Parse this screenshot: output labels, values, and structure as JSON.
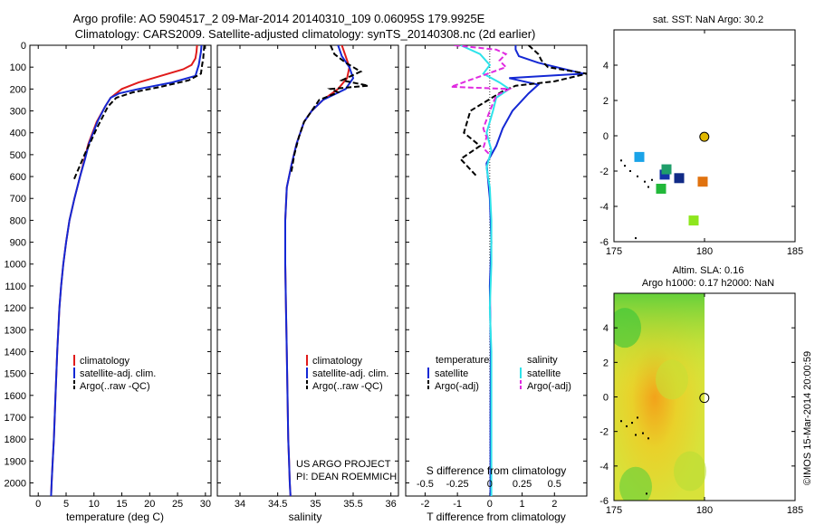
{
  "header": {
    "title_line1": "Argo profile: AO 5904517_2 09-Mar-2014 20140310_109 0.06095S 179.9925E",
    "title_line2": "Climatology: CARS2009. Satellite-adjusted climatology: synTS_20140308.nc (2d earlier)"
  },
  "colors": {
    "climatology": "#e01b1b",
    "satellite": "#1428d4",
    "argo": "#000000",
    "salinity_sat": "#2ee3ea",
    "salinity_argo": "#e02ae0"
  },
  "chart_data": [
    {
      "id": "temperature",
      "type": "line",
      "xlabel": "temperature (deg C)",
      "ylabel": "",
      "xlim": [
        -1.5,
        31
      ],
      "ylim": [
        2060,
        0
      ],
      "xticks": [
        0,
        5,
        10,
        15,
        20,
        25,
        30
      ],
      "yticks": [
        0,
        100,
        200,
        300,
        400,
        500,
        600,
        700,
        800,
        900,
        1000,
        1100,
        1200,
        1300,
        1400,
        1500,
        1600,
        1700,
        1800,
        1900,
        2000
      ],
      "legend": [
        "climatology",
        "satellite-adj. clim.",
        "Argo(..raw -QC)"
      ],
      "series": [
        {
          "name": "climatology",
          "color_key": "climatology",
          "style": "solid",
          "x": [
            28.5,
            28.4,
            28.2,
            27.5,
            26.0,
            22.0,
            18.0,
            15.0,
            13.0,
            12.0,
            10.5,
            9.0,
            8.3,
            7.5,
            6.5,
            5.6,
            5.0,
            4.5,
            4.1,
            3.8,
            3.4,
            3.1,
            2.8,
            2.6,
            2.4,
            2.3
          ],
          "y": [
            0,
            30,
            60,
            90,
            110,
            140,
            170,
            200,
            240,
            280,
            350,
            450,
            520,
            600,
            700,
            800,
            900,
            1000,
            1100,
            1200,
            1400,
            1600,
            1800,
            1900,
            2000,
            2060
          ]
        },
        {
          "name": "satellite-adj. clim.",
          "color_key": "satellite",
          "style": "solid",
          "x": [
            29.3,
            29.2,
            29.0,
            28.8,
            28.2,
            24.0,
            18.0,
            14.5,
            13.0,
            12.0,
            10.6,
            9.1,
            8.4,
            7.5,
            6.5,
            5.6,
            5.0,
            4.5,
            4.1,
            3.8,
            3.4,
            3.1,
            2.8,
            2.6,
            2.4,
            2.3
          ],
          "y": [
            0,
            30,
            60,
            90,
            140,
            170,
            200,
            220,
            240,
            280,
            350,
            450,
            520,
            600,
            700,
            800,
            900,
            1000,
            1100,
            1200,
            1400,
            1600,
            1800,
            1900,
            2000,
            2060
          ]
        },
        {
          "name": "Argo(..raw -QC)",
          "color_key": "argo",
          "style": "dashed",
          "x": [
            29.8,
            29.7,
            29.6,
            29.4,
            29.2,
            27.0,
            22.0,
            17.0,
            14.0,
            12.5,
            11.5,
            10.5,
            9.6,
            8.3,
            7.3,
            6.3
          ],
          "y": [
            0,
            30,
            60,
            90,
            130,
            160,
            190,
            215,
            240,
            280,
            330,
            380,
            430,
            500,
            560,
            620
          ]
        }
      ]
    },
    {
      "id": "salinity",
      "type": "line",
      "xlabel": "salinity",
      "ylabel": "",
      "xlim": [
        33.7,
        36.1
      ],
      "ylim": [
        2060,
        0
      ],
      "xticks": [
        34,
        34.5,
        35,
        35.5,
        36
      ],
      "legend": [
        "climatology",
        "satellite-adj. clim.",
        "Argo(..raw -QC)"
      ],
      "annotation_line1": "US ARGO PROJECT",
      "annotation_line2": "PI: DEAN ROEMMICH",
      "series": [
        {
          "name": "climatology",
          "color_key": "climatology",
          "style": "solid",
          "x": [
            35.35,
            35.4,
            35.45,
            35.42,
            35.3,
            35.1,
            34.95,
            34.85,
            34.75,
            34.68,
            34.62,
            34.6,
            34.6,
            34.61,
            34.62,
            34.63,
            34.64,
            34.65,
            34.66,
            34.67
          ],
          "y": [
            0,
            50,
            100,
            150,
            200,
            250,
            300,
            350,
            450,
            550,
            650,
            800,
            1000,
            1200,
            1400,
            1600,
            1800,
            1900,
            2000,
            2060
          ]
        },
        {
          "name": "satellite-adj. clim.",
          "color_key": "satellite",
          "style": "solid",
          "x": [
            35.3,
            35.35,
            35.45,
            35.5,
            35.4,
            35.1,
            34.95,
            34.85,
            34.75,
            34.68,
            34.62,
            34.6,
            34.6,
            34.61,
            34.62,
            34.63,
            34.64,
            34.65,
            34.66,
            34.67
          ],
          "y": [
            0,
            50,
            100,
            150,
            200,
            250,
            300,
            350,
            450,
            550,
            650,
            800,
            1000,
            1200,
            1400,
            1600,
            1800,
            1900,
            2000,
            2060
          ]
        },
        {
          "name": "Argo(..raw -QC)",
          "color_key": "argo",
          "style": "dashed",
          "x": [
            35.2,
            35.25,
            35.4,
            35.6,
            35.35,
            35.7,
            35.2,
            35.3,
            35.05,
            34.95,
            34.85,
            34.78,
            34.72,
            34.68
          ],
          "y": [
            0,
            40,
            80,
            120,
            160,
            185,
            200,
            215,
            250,
            300,
            350,
            420,
            500,
            580
          ]
        }
      ]
    },
    {
      "id": "difference",
      "type": "line",
      "xlabel": "T difference from climatology",
      "ylabel": "",
      "xlim": [
        -2.6,
        3.0
      ],
      "ylim": [
        2060,
        0
      ],
      "xticks": [
        -2,
        -1,
        0,
        1,
        2
      ],
      "secondary_xlabel": "S difference from climatology",
      "secondary_xticks": [
        "-0.5",
        "-0.25",
        "0",
        "0.25",
        "0.5"
      ],
      "secondary_xtick_values": [
        -2,
        -1,
        0,
        1,
        2
      ],
      "legend_temperature_title": "temperature",
      "legend_salinity_title": "salinity",
      "legend": [
        "satellite",
        "Argo(-adj)",
        "satellite",
        "Argo(-adj)"
      ],
      "series": [
        {
          "name": "temperature satellite",
          "color_key": "satellite",
          "style": "solid",
          "x": [
            0.8,
            0.8,
            0.9,
            1.5,
            2.9,
            0.6,
            1.5,
            1.2,
            0.7,
            0.4,
            0.2,
            -0.1,
            -0.05,
            0.0,
            0.05,
            0.0,
            0.03,
            0.02,
            0.02,
            0.02
          ],
          "y": [
            0,
            20,
            50,
            80,
            130,
            150,
            180,
            220,
            300,
            380,
            460,
            540,
            620,
            700,
            900,
            1100,
            1400,
            1700,
            2000,
            2060
          ]
        },
        {
          "name": "temperature Argo(-adj)",
          "color_key": "argo",
          "style": "dashed",
          "x": [
            1.2,
            1.5,
            1.6,
            1.8,
            3.0,
            2.0,
            0.8,
            0.4,
            -0.6,
            -0.8,
            -0.3,
            -0.9,
            -0.4
          ],
          "y": [
            0,
            40,
            70,
            100,
            130,
            165,
            185,
            210,
            300,
            400,
            460,
            520,
            600
          ]
        },
        {
          "name": "salinity satellite",
          "color_key": "salinity_sat",
          "style": "solid",
          "x": [
            -0.9,
            -0.3,
            0.0,
            -0.2,
            0.3,
            0.6,
            0.2,
            0.1,
            -0.1,
            0.05,
            -0.1,
            0.0,
            0.05,
            0.05,
            0.0,
            0.05,
            0.05,
            0.05,
            0.05,
            0.05
          ],
          "y": [
            0,
            40,
            90,
            130,
            170,
            200,
            240,
            300,
            400,
            480,
            560,
            650,
            800,
            1000,
            1200,
            1400,
            1600,
            1800,
            2000,
            2060
          ]
        },
        {
          "name": "salinity Argo(-adj)",
          "color_key": "salinity_argo",
          "style": "dashed",
          "x": [
            -1.1,
            0.2,
            0.5,
            0.3,
            0.5,
            -1.2,
            0.6,
            0.2,
            0.0,
            -0.2,
            -0.1,
            -0.2,
            0.0
          ],
          "y": [
            0,
            20,
            40,
            70,
            100,
            190,
            200,
            230,
            300,
            380,
            420,
            470,
            500
          ]
        }
      ]
    },
    {
      "id": "sst_map",
      "type": "scatter",
      "title": "sat. SST: NaN Argo: 30.2",
      "xlim": [
        175,
        185
      ],
      "ylim": [
        -6,
        6
      ],
      "xticks": [
        175,
        180,
        185
      ],
      "yticks": [
        -6,
        -4,
        -2,
        0,
        2,
        4
      ],
      "points": [
        {
          "x": 176.4,
          "y": -1.2,
          "color": "#1aa3e8",
          "marker": "square"
        },
        {
          "x": 177.8,
          "y": -2.2,
          "color": "#1433a8",
          "marker": "square"
        },
        {
          "x": 177.9,
          "y": -1.9,
          "color": "#1f9e6a",
          "marker": "square"
        },
        {
          "x": 178.6,
          "y": -2.4,
          "color": "#102a86",
          "marker": "square"
        },
        {
          "x": 177.6,
          "y": -3.0,
          "color": "#22b83a",
          "marker": "square"
        },
        {
          "x": 179.9,
          "y": -2.6,
          "color": "#e0720f",
          "marker": "square"
        },
        {
          "x": 179.4,
          "y": -4.8,
          "color": "#8ee61d",
          "marker": "square"
        },
        {
          "x": 179.99,
          "y": -0.06,
          "color": "#e0b800",
          "marker": "circle"
        }
      ],
      "coast_points": [
        {
          "x": 175.4,
          "y": -1.4
        },
        {
          "x": 175.6,
          "y": -1.7
        },
        {
          "x": 175.9,
          "y": -2.0
        },
        {
          "x": 176.3,
          "y": -2.3
        },
        {
          "x": 176.7,
          "y": -2.6
        },
        {
          "x": 177.1,
          "y": -2.5
        },
        {
          "x": 176.9,
          "y": -2.9
        },
        {
          "x": 176.2,
          "y": -5.8
        }
      ]
    },
    {
      "id": "sla_map",
      "type": "heatmap",
      "title_line1": "Altim. SLA: 0.16",
      "title_line2": "Argo h1000: 0.17 h2000: NaN",
      "xlim": [
        175,
        185
      ],
      "ylim": [
        -6,
        6
      ],
      "xticks": [
        175,
        180,
        185
      ],
      "yticks": [
        -6,
        -4,
        -2,
        0,
        2,
        4
      ],
      "data_xlim": [
        175,
        180
      ],
      "float_position": {
        "x": 179.99,
        "y": -0.06
      },
      "coast_points": [
        {
          "x": 175.4,
          "y": -1.4
        },
        {
          "x": 175.7,
          "y": -1.7
        },
        {
          "x": 176.0,
          "y": -1.5
        },
        {
          "x": 176.3,
          "y": -1.2
        },
        {
          "x": 176.6,
          "y": -2.1
        },
        {
          "x": 176.9,
          "y": -2.4
        },
        {
          "x": 176.2,
          "y": -2.2
        },
        {
          "x": 176.8,
          "y": -5.6
        }
      ]
    }
  ],
  "footer": {
    "credit": "©IMOS 15-Mar-2014 20:00:59"
  }
}
